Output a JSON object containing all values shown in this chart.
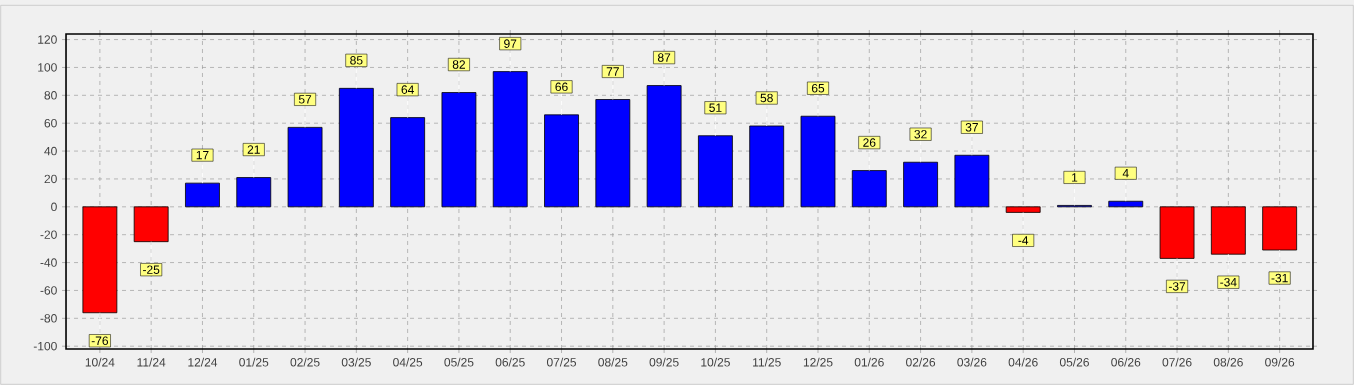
{
  "chart_data": {
    "type": "bar",
    "categories": [
      "10/24",
      "11/24",
      "12/24",
      "01/25",
      "02/25",
      "03/25",
      "04/25",
      "05/25",
      "06/25",
      "07/25",
      "08/25",
      "09/25",
      "10/25",
      "11/25",
      "12/25",
      "01/26",
      "02/26",
      "03/26",
      "04/26",
      "05/26",
      "06/26",
      "07/26",
      "08/26",
      "09/26"
    ],
    "values": [
      -76,
      -25,
      17,
      21,
      57,
      85,
      64,
      82,
      97,
      66,
      77,
      87,
      51,
      58,
      65,
      26,
      32,
      37,
      -4,
      1,
      4,
      -37,
      -34,
      -31
    ],
    "colors": [
      "#ff0000",
      "#ff0000",
      "#0000ff",
      "#0000ff",
      "#0000ff",
      "#0000ff",
      "#0000ff",
      "#0000ff",
      "#0000ff",
      "#0000ff",
      "#0000ff",
      "#0000ff",
      "#0000ff",
      "#0000ff",
      "#0000ff",
      "#0000ff",
      "#0000ff",
      "#0000ff",
      "#ff0000",
      "#0000ff",
      "#0000ff",
      "#ff0000",
      "#ff0000",
      "#ff0000"
    ],
    "ylim": [
      -102,
      124
    ],
    "yticks": [
      -100,
      -80,
      -60,
      -40,
      -20,
      0,
      20,
      40,
      60,
      80,
      100,
      120
    ],
    "grid": true,
    "data_labels": true
  }
}
